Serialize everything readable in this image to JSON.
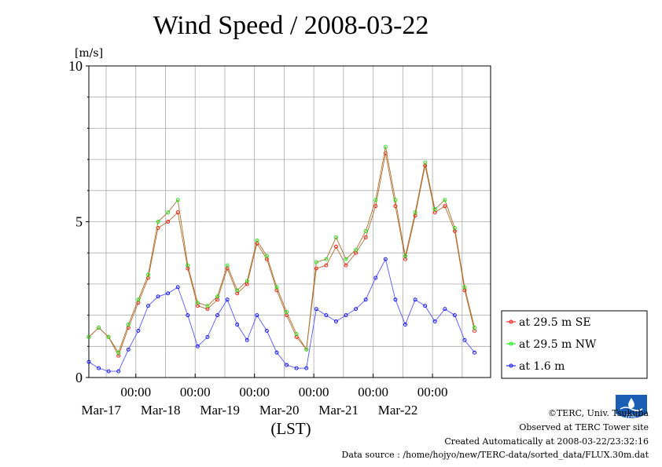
{
  "title": "Wind Speed / 2008-03-22",
  "chart_data": {
    "type": "line",
    "title": "Wind Speed / 2008-03-22",
    "xlabel": "(LST)",
    "ylabel": "[m/s]",
    "ylim": [
      0,
      10
    ],
    "xlim": [
      "2008-03-16 05:00",
      "2008-03-22 23:30"
    ],
    "y_ticks": [
      "0",
      "5",
      "10"
    ],
    "x_tick_labels": [
      {
        "time": "00:00",
        "date": "Mar-17"
      },
      {
        "time": "00:00",
        "date": "Mar-18"
      },
      {
        "time": "00:00",
        "date": "Mar-19"
      },
      {
        "time": "00:00",
        "date": "Mar-20"
      },
      {
        "time": "00:00",
        "date": "Mar-21"
      },
      {
        "time": "00:00",
        "date": "Mar-22"
      }
    ],
    "grid": true,
    "legend_position": "right",
    "x_unit": "hours after 2008-03-16 05:00 LST",
    "x": [
      0,
      4,
      8,
      12,
      16,
      20,
      24,
      28,
      32,
      36,
      40,
      44,
      48,
      52,
      56,
      60,
      64,
      68,
      72,
      76,
      80,
      84,
      88,
      92,
      96,
      100,
      104,
      108,
      112,
      116,
      120,
      124,
      128,
      132,
      136,
      140,
      144,
      148,
      152,
      156
    ],
    "series": [
      {
        "name": "at 29.5 m SE",
        "color": "#ff0000",
        "values": [
          1.3,
          1.6,
          1.3,
          0.7,
          1.6,
          2.4,
          3.2,
          4.8,
          5.0,
          5.3,
          3.5,
          2.3,
          2.2,
          2.5,
          3.5,
          2.7,
          3.0,
          4.3,
          3.8,
          2.8,
          2.0,
          1.3,
          0.9,
          3.5,
          3.6,
          4.2,
          3.6,
          4.0,
          4.5,
          5.5,
          7.2,
          5.5,
          3.8,
          5.2,
          6.8,
          5.3,
          5.5,
          4.7,
          2.8,
          1.5
        ]
      },
      {
        "name": "at 29.5 m NW",
        "color": "#00ee00",
        "values": [
          1.3,
          1.6,
          1.3,
          0.8,
          1.7,
          2.5,
          3.3,
          5.0,
          5.3,
          5.7,
          3.6,
          2.4,
          2.3,
          2.6,
          3.6,
          2.8,
          3.1,
          4.4,
          3.9,
          2.9,
          2.1,
          1.4,
          0.9,
          3.7,
          3.8,
          4.5,
          3.8,
          4.1,
          4.7,
          5.7,
          7.4,
          5.7,
          3.9,
          5.3,
          6.9,
          5.4,
          5.7,
          4.8,
          2.9,
          1.6
        ]
      },
      {
        "name": "at 1.6 m",
        "color": "#0000ff",
        "values": [
          0.5,
          0.3,
          0.2,
          0.2,
          0.9,
          1.5,
          2.3,
          2.6,
          2.7,
          2.9,
          2.0,
          1.0,
          1.3,
          2.0,
          2.5,
          1.7,
          1.2,
          2.0,
          1.5,
          0.8,
          0.4,
          0.3,
          0.3,
          2.2,
          2.0,
          1.8,
          2.0,
          2.2,
          2.5,
          3.2,
          3.8,
          2.5,
          1.7,
          2.5,
          2.3,
          1.8,
          2.2,
          2.0,
          1.2,
          0.8
        ]
      }
    ]
  },
  "credits": {
    "copyright": "©TERC, Univ. Tsukuba",
    "observed": "Observed at TERC Tower site",
    "created": "Created Automatically at 2008-03-22/23:32:16",
    "source": "Data source : /home/hojyo/new/TERC-data/sorted_data/FLUX.30m.dat",
    "logo_text": "TERC"
  }
}
